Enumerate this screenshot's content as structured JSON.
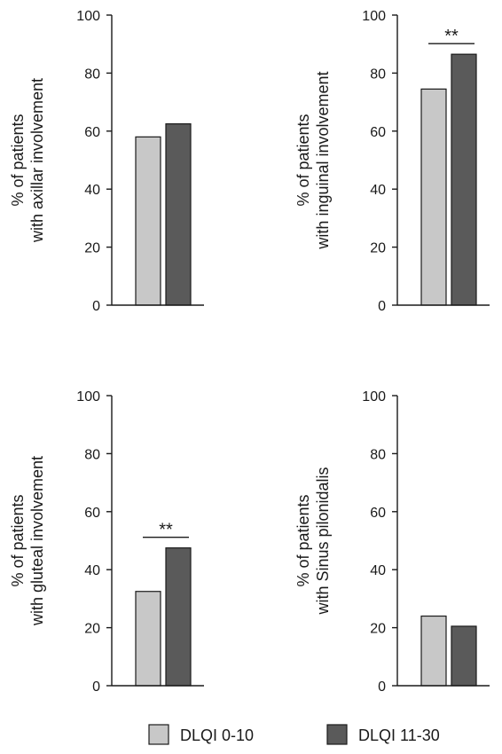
{
  "colors": {
    "dlqi_low": "#c8c8c8",
    "dlqi_high": "#5a5a5a",
    "stroke": "#1a1a1a"
  },
  "legend": [
    {
      "label": "DLQI 0-10",
      "color": "#c8c8c8"
    },
    {
      "label": "DLQI 11-30",
      "color": "#5a5a5a"
    }
  ],
  "chart_data": [
    {
      "type": "bar",
      "ylabel": [
        "% of patients",
        "with axillar involvement"
      ],
      "ylim": [
        0,
        100
      ],
      "yticks": [
        0,
        20,
        40,
        60,
        80,
        100
      ],
      "series": [
        {
          "name": "DLQI 0-10",
          "values": [
            58
          ]
        },
        {
          "name": "DLQI 11-30",
          "values": [
            62.5
          ]
        }
      ],
      "significance": ""
    },
    {
      "type": "bar",
      "ylabel": [
        "% of patients",
        "with inguinal involvement"
      ],
      "ylim": [
        0,
        100
      ],
      "yticks": [
        0,
        20,
        40,
        60,
        80,
        100
      ],
      "series": [
        {
          "name": "DLQI 0-10",
          "values": [
            74.5
          ]
        },
        {
          "name": "DLQI 11-30",
          "values": [
            86.5
          ]
        }
      ],
      "significance": "**"
    },
    {
      "type": "bar",
      "ylabel": [
        "% of patients",
        "with gluteal involvement"
      ],
      "ylim": [
        0,
        100
      ],
      "yticks": [
        0,
        20,
        40,
        60,
        80,
        100
      ],
      "series": [
        {
          "name": "DLQI 0-10",
          "values": [
            32.5
          ]
        },
        {
          "name": "DLQI 11-30",
          "values": [
            47.5
          ]
        }
      ],
      "significance": "**"
    },
    {
      "type": "bar",
      "ylabel": [
        "% of patients",
        "with Sinus pilonidalis"
      ],
      "ylim": [
        0,
        100
      ],
      "yticks": [
        0,
        20,
        40,
        60,
        80,
        100
      ],
      "series": [
        {
          "name": "DLQI 0-10",
          "values": [
            24
          ]
        },
        {
          "name": "DLQI 11-30",
          "values": [
            20.5
          ]
        }
      ],
      "significance": ""
    }
  ]
}
